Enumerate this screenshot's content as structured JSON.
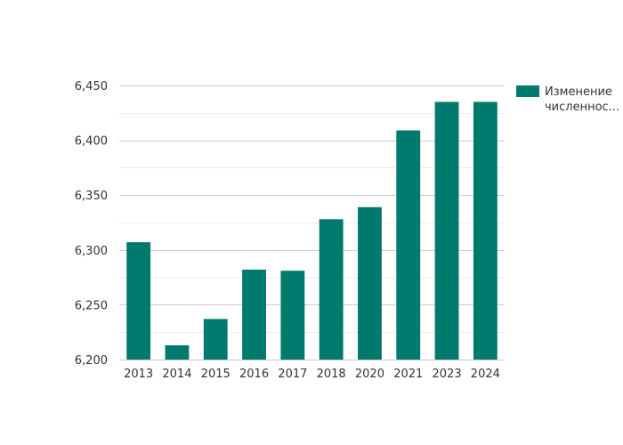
{
  "chart_data": {
    "type": "bar",
    "categories": [
      "2013",
      "2014",
      "2015",
      "2016",
      "2017",
      "2018",
      "2020",
      "2021",
      "2023",
      "2024"
    ],
    "series": [
      {
        "name": "Изменение численнос...",
        "legend_lines": [
          "Изменение",
          "численнос..."
        ],
        "color": "#007a6c",
        "values": [
          6307,
          6213,
          6237,
          6282,
          6281,
          6328,
          6339,
          6409,
          6435,
          6435
        ]
      }
    ],
    "ylim": [
      6200,
      6450
    ],
    "y_ticks": [
      6200,
      6250,
      6300,
      6350,
      6400,
      6450
    ],
    "y_tick_labels": [
      "6,200",
      "6,250",
      "6,300",
      "6,350",
      "6,400",
      "6,450"
    ],
    "title": "",
    "xlabel": "",
    "ylabel": "",
    "grid": true,
    "legend": "top-right"
  }
}
